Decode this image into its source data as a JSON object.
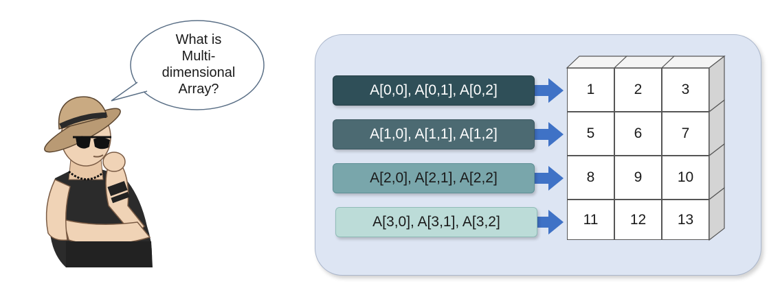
{
  "question": {
    "lines": [
      "What is",
      "Multi-",
      "dimensional",
      "Array?"
    ]
  },
  "rows": [
    {
      "label": "A[0,0], A[0,1], A[0,2]",
      "values": [
        "1",
        "2",
        "3"
      ]
    },
    {
      "label": "A[1,0], A[1,1], A[1,2]",
      "values": [
        "5",
        "6",
        "7"
      ]
    },
    {
      "label": "A[2,0], A[2,1], A[2,2]",
      "values": [
        "8",
        "9",
        "10"
      ]
    },
    {
      "label": "A[3,0], A[3,1], A[3,2]",
      "values": [
        "11",
        "12",
        "13"
      ]
    }
  ],
  "colors": {
    "panel": "#dde5f3",
    "arrow": "#3f72c6",
    "cube_side": "#d7d7d7",
    "cube_top": "#f2f2f2"
  },
  "icons": [
    "thinking-man-illustration",
    "speech-bubble",
    "arrow-right-icon"
  ]
}
